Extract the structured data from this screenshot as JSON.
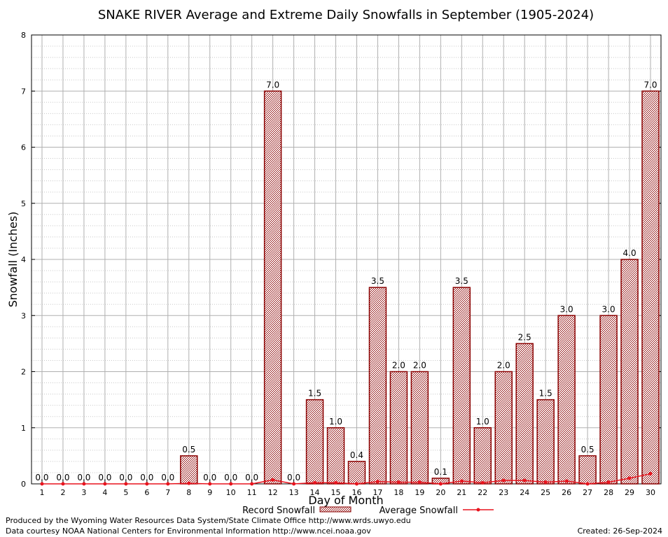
{
  "chart_data": {
    "type": "bar",
    "title": "SNAKE RIVER Average and Extreme Daily Snowfalls in September (1905-2024)",
    "xlabel": "Day of Month",
    "ylabel": "Snowfall (Inches)",
    "ylim": [
      0,
      8
    ],
    "yticks": [
      0,
      1,
      2,
      3,
      4,
      5,
      6,
      7,
      8
    ],
    "grid": true,
    "categories": [
      "1",
      "2",
      "3",
      "4",
      "5",
      "6",
      "7",
      "8",
      "9",
      "10",
      "11",
      "12",
      "13",
      "14",
      "15",
      "16",
      "17",
      "18",
      "19",
      "20",
      "21",
      "22",
      "23",
      "24",
      "25",
      "26",
      "27",
      "28",
      "29",
      "30"
    ],
    "series": [
      {
        "name": "Record Snowfall",
        "kind": "bar",
        "color": "#8b0000",
        "values": [
          0.0,
          0.0,
          0.0,
          0.0,
          0.0,
          0.0,
          0.0,
          0.5,
          0.0,
          0.0,
          0.0,
          7.0,
          0.0,
          1.5,
          1.0,
          0.4,
          3.5,
          2.0,
          2.0,
          0.1,
          3.5,
          1.0,
          2.0,
          2.5,
          1.5,
          3.0,
          0.5,
          3.0,
          4.0,
          7.0
        ],
        "labels": [
          "0.0",
          "0.0",
          "0.0",
          "0.0",
          "0.0",
          "0.0",
          "0.0",
          "0.5",
          "0.0",
          "0.0",
          "0.0",
          "7.0",
          "0.0",
          "1.5",
          "1.0",
          "0.4",
          "3.5",
          "2.0",
          "2.0",
          "0.1",
          "3.5",
          "1.0",
          "2.0",
          "2.5",
          "1.5",
          "3.0",
          "0.5",
          "3.0",
          "4.0",
          "7.0"
        ]
      },
      {
        "name": "Average Snowfall",
        "kind": "line",
        "color": "#e8141e",
        "values": [
          0.0,
          0.0,
          0.0,
          0.0,
          0.0,
          0.0,
          0.0,
          0.01,
          0.0,
          0.0,
          0.0,
          0.07,
          0.0,
          0.02,
          0.02,
          0.0,
          0.04,
          0.03,
          0.03,
          0.0,
          0.05,
          0.02,
          0.06,
          0.06,
          0.03,
          0.05,
          0.0,
          0.03,
          0.1,
          0.18
        ]
      }
    ],
    "legend_position": "bottom-center"
  },
  "footer": {
    "produced_by": "Produced by the Wyoming Water Resources Data System/State Climate Office http://www.wrds.uwyo.edu",
    "courtesy": "Data courtesy NOAA National Centers for Environmental Information http://www.ncei.noaa.gov",
    "created": "Created:  26-Sep-2024"
  }
}
